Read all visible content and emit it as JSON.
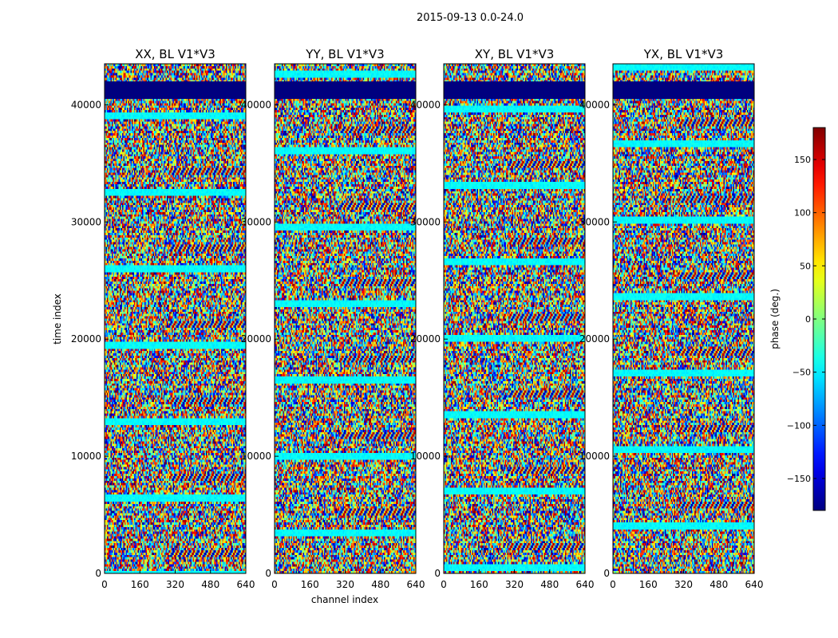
{
  "figure": {
    "suptitle": "2015-09-13 0.0-24.0",
    "xlabel": "channel index",
    "ylabel": "time index"
  },
  "chart_data": {
    "type": "heatmap",
    "colormap": "jet",
    "x_ticks": [
      0,
      160,
      320,
      480,
      640
    ],
    "y_ticks": [
      0,
      10000,
      20000,
      30000,
      40000
    ],
    "xlim": [
      0,
      640
    ],
    "ylim": [
      0,
      43500
    ],
    "panels": [
      {
        "title": "XX, BL V1*V3"
      },
      {
        "title": "YY, BL V1*V3"
      },
      {
        "title": "XY, BL V1*V3"
      },
      {
        "title": "YX, BL V1*V3"
      }
    ],
    "colorbar": {
      "label": "phase (deg.)",
      "range": [
        -180,
        180
      ],
      "ticks": [
        -150,
        -100,
        -50,
        0,
        50,
        100,
        150
      ]
    }
  },
  "colors": {
    "jet_low": "#00007f",
    "jet_high": "#7f0000",
    "axis": "#000000"
  }
}
